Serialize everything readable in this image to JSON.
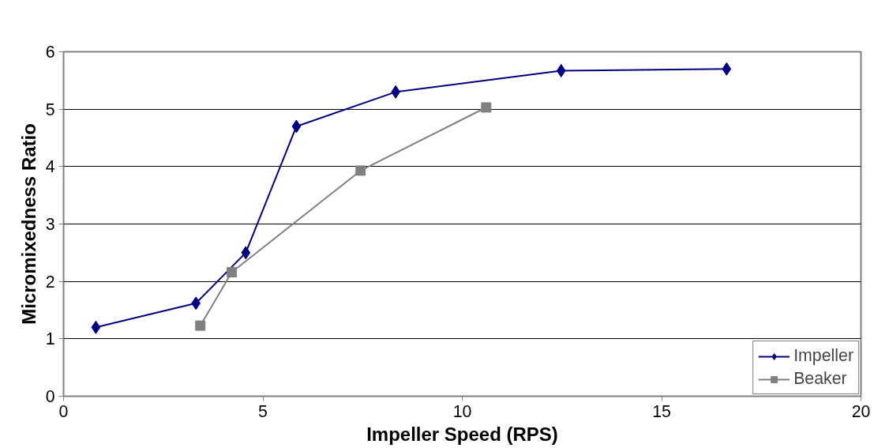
{
  "chart_data": {
    "type": "line",
    "xlabel": "Impeller Speed (RPS)",
    "ylabel": "Micromixedness Ratio",
    "xlim": [
      0,
      20
    ],
    "xticks": [
      0,
      5,
      10,
      15,
      20
    ],
    "ylim": [
      0,
      6
    ],
    "yticks": [
      0,
      1,
      2,
      3,
      4,
      5,
      6
    ],
    "grid": "y",
    "legend": "bottom right",
    "series": [
      {
        "name": "Impeller",
        "color": "#000080",
        "marker": "diamond",
        "x": [
          0.81,
          3.32,
          4.57,
          5.84,
          8.33,
          12.48,
          16.63
        ],
        "values": [
          1.2,
          1.62,
          2.5,
          4.7,
          5.3,
          5.67,
          5.7
        ]
      },
      {
        "name": "Beaker",
        "color": "#808080",
        "marker": "square",
        "x": [
          3.43,
          4.22,
          7.45,
          10.6
        ],
        "values": [
          1.23,
          2.16,
          3.93,
          5.03
        ]
      }
    ]
  }
}
